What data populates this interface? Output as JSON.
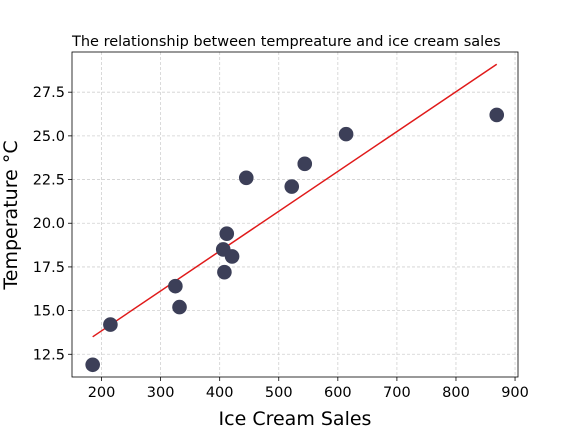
{
  "chart_data": {
    "type": "scatter",
    "title": "The relationship between tempreature and ice cream sales",
    "xlabel": "Ice Cream Sales",
    "ylabel": "Temperature °C",
    "xlim": [
      150,
      905
    ],
    "ylim": [
      11.2,
      29.8
    ],
    "xticks": [
      200,
      300,
      400,
      500,
      600,
      700,
      800,
      900
    ],
    "xtick_labels": [
      "200",
      "300",
      "400",
      "500",
      "600",
      "700",
      "800",
      "900"
    ],
    "yticks": [
      12.5,
      15.0,
      17.5,
      20.0,
      22.5,
      25.0,
      27.5
    ],
    "ytick_labels": [
      "12.5",
      "15.0",
      "17.5",
      "20.0",
      "22.5",
      "25.0",
      "27.5"
    ],
    "grid": true,
    "points": [
      {
        "x": 185,
        "y": 11.9
      },
      {
        "x": 215,
        "y": 14.2
      },
      {
        "x": 325,
        "y": 16.4
      },
      {
        "x": 332,
        "y": 15.2
      },
      {
        "x": 406,
        "y": 18.5
      },
      {
        "x": 408,
        "y": 17.2
      },
      {
        "x": 412,
        "y": 19.4
      },
      {
        "x": 421,
        "y": 18.1
      },
      {
        "x": 445,
        "y": 22.6
      },
      {
        "x": 522,
        "y": 22.1
      },
      {
        "x": 544,
        "y": 23.4
      },
      {
        "x": 614,
        "y": 25.1
      },
      {
        "x": 869,
        "y": 26.2
      }
    ],
    "trendline": {
      "x": [
        185,
        869
      ],
      "y": [
        13.5,
        29.1
      ]
    },
    "colors": {
      "point": "#3c3f58",
      "trendline": "#e01a1a"
    }
  }
}
